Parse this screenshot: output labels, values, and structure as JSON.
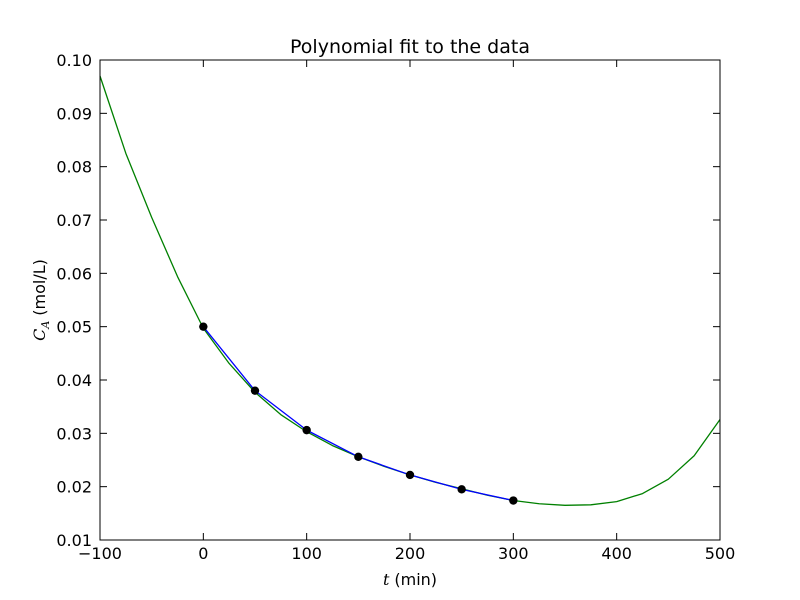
{
  "chart_data": {
    "type": "line",
    "title": "Polynomial fit to the data",
    "xlabel": {
      "var": "t",
      "unit": "(min)"
    },
    "ylabel": {
      "var": "C",
      "sub": "A",
      "unit": "(mol/L)"
    },
    "xlim": [
      -100,
      500
    ],
    "ylim": [
      0.01,
      0.1
    ],
    "xticks": [
      -100,
      0,
      100,
      200,
      300,
      400,
      500
    ],
    "xtick_labels": [
      "−100",
      "0",
      "100",
      "200",
      "300",
      "400",
      "500"
    ],
    "yticks": [
      0.01,
      0.02,
      0.03,
      0.04,
      0.05,
      0.06,
      0.07,
      0.08,
      0.09,
      0.1
    ],
    "ytick_labels": [
      "0.01",
      "0.02",
      "0.03",
      "0.04",
      "0.05",
      "0.06",
      "0.07",
      "0.08",
      "0.09",
      "0.10"
    ],
    "grid": false,
    "legend": "none",
    "series": [
      {
        "kind": "markers",
        "color": "#000000",
        "x": [
          0,
          50,
          100,
          150,
          200,
          250,
          300
        ],
        "y": [
          0.05,
          0.038,
          0.0306,
          0.0256,
          0.0222,
          0.0195,
          0.0174
        ]
      },
      {
        "kind": "line",
        "color": "#0000ff",
        "x": [
          0,
          50,
          100,
          150,
          200,
          250,
          300
        ],
        "y": [
          0.05,
          0.038,
          0.0306,
          0.0256,
          0.0222,
          0.0195,
          0.0174
        ]
      },
      {
        "kind": "line",
        "color": "#008000",
        "x": [
          -100,
          -75,
          -50,
          -25,
          0,
          25,
          50,
          75,
          100,
          125,
          150,
          175,
          200,
          225,
          250,
          275,
          300,
          325,
          350,
          375,
          400,
          425,
          450,
          475,
          500
        ],
        "y": [
          0.097,
          0.0825,
          0.0705,
          0.0594,
          0.0497,
          0.0431,
          0.0377,
          0.0335,
          0.0303,
          0.0277,
          0.0256,
          0.0238,
          0.0222,
          0.0208,
          0.0196,
          0.0184,
          0.0174,
          0.0168,
          0.0165,
          0.0166,
          0.0172,
          0.0187,
          0.0214,
          0.0258,
          0.0326
        ]
      }
    ]
  }
}
